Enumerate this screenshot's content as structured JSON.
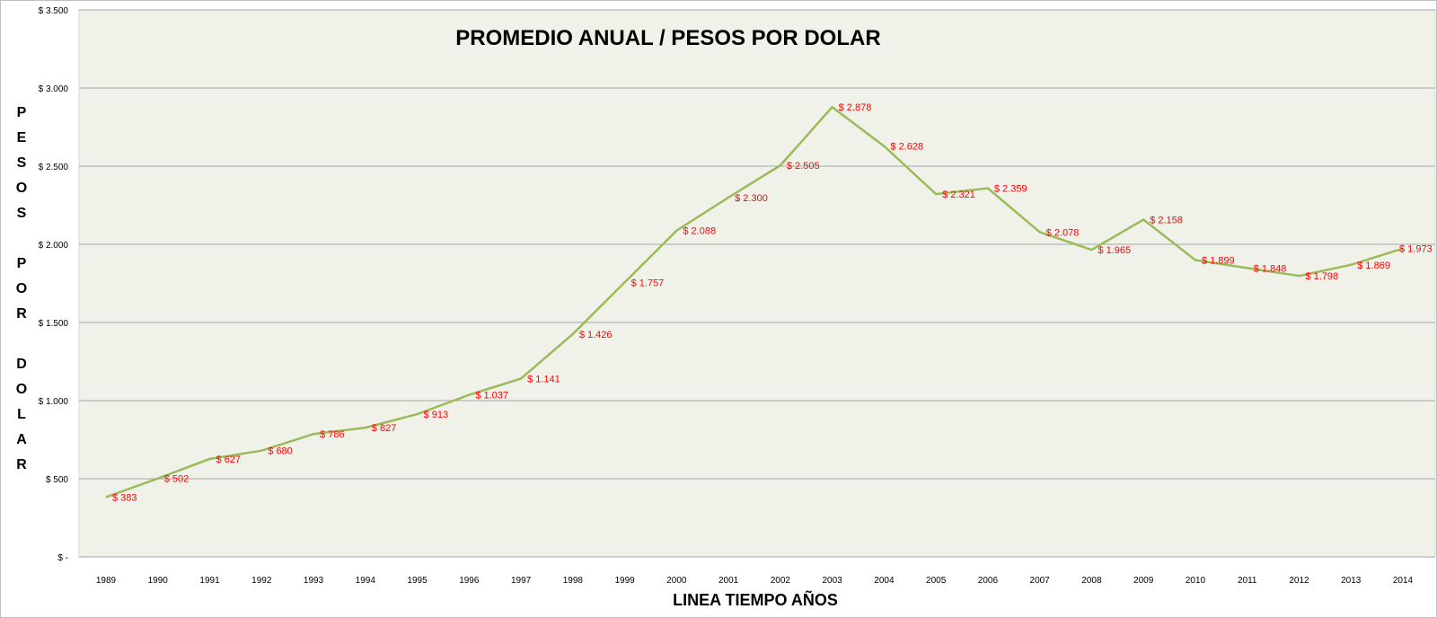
{
  "chart_data": {
    "type": "line",
    "title": "PROMEDIO ANUAL / PESOS POR DOLAR",
    "xlabel": "LINEA TIEMPO AÑOS",
    "ylabel": "PESOS POR DOLAR",
    "ylim": [
      0,
      3500
    ],
    "yticks": [
      0,
      500,
      1000,
      1500,
      2000,
      2500,
      3000,
      3500
    ],
    "ytick_labels": [
      "$ -",
      "$ 500",
      "$ 1.000",
      "$ 1.500",
      "$ 2.000",
      "$ 2.500",
      "$ 3.000",
      "$ 3.500"
    ],
    "grid": true,
    "legend": "none",
    "categories": [
      "1989",
      "1990",
      "1991",
      "1992",
      "1993",
      "1994",
      "1995",
      "1996",
      "1997",
      "1998",
      "1999",
      "2000",
      "2001",
      "2002",
      "2003",
      "2004",
      "2005",
      "2006",
      "2007",
      "2008",
      "2009",
      "2010",
      "2011",
      "2012",
      "2013",
      "2014"
    ],
    "series": [
      {
        "values": [
          383,
          502,
          627,
          680,
          786,
          827,
          913,
          1037,
          1141,
          1426,
          1757,
          2088,
          2300,
          2505,
          2878,
          2628,
          2321,
          2359,
          2078,
          1965,
          2158,
          1899,
          1848,
          1798,
          1869,
          1973
        ],
        "labels": [
          "$ 383",
          "$ 502",
          "$ 627",
          "$ 680",
          "$ 786",
          "$ 827",
          "$ 913",
          "$ 1.037",
          "$ 1.141",
          "$ 1.426",
          "$ 1.757",
          "$ 2.088",
          "$ 2.300",
          "$ 2.505",
          "$ 2.878",
          "$ 2.628",
          "$ 2.321",
          "$ 2.359",
          "$ 2.078",
          "$ 1.965",
          "$ 2.158",
          "$ 1.899",
          "$ 1.848",
          "$ 1.798",
          "$ 1.869",
          "$ 1.973"
        ]
      }
    ],
    "colors": {
      "line": "#9BBB59",
      "data_labels": "#FF0000",
      "plot_background": "#F0F2EA",
      "gridlines": "#A6A6A6"
    }
  }
}
